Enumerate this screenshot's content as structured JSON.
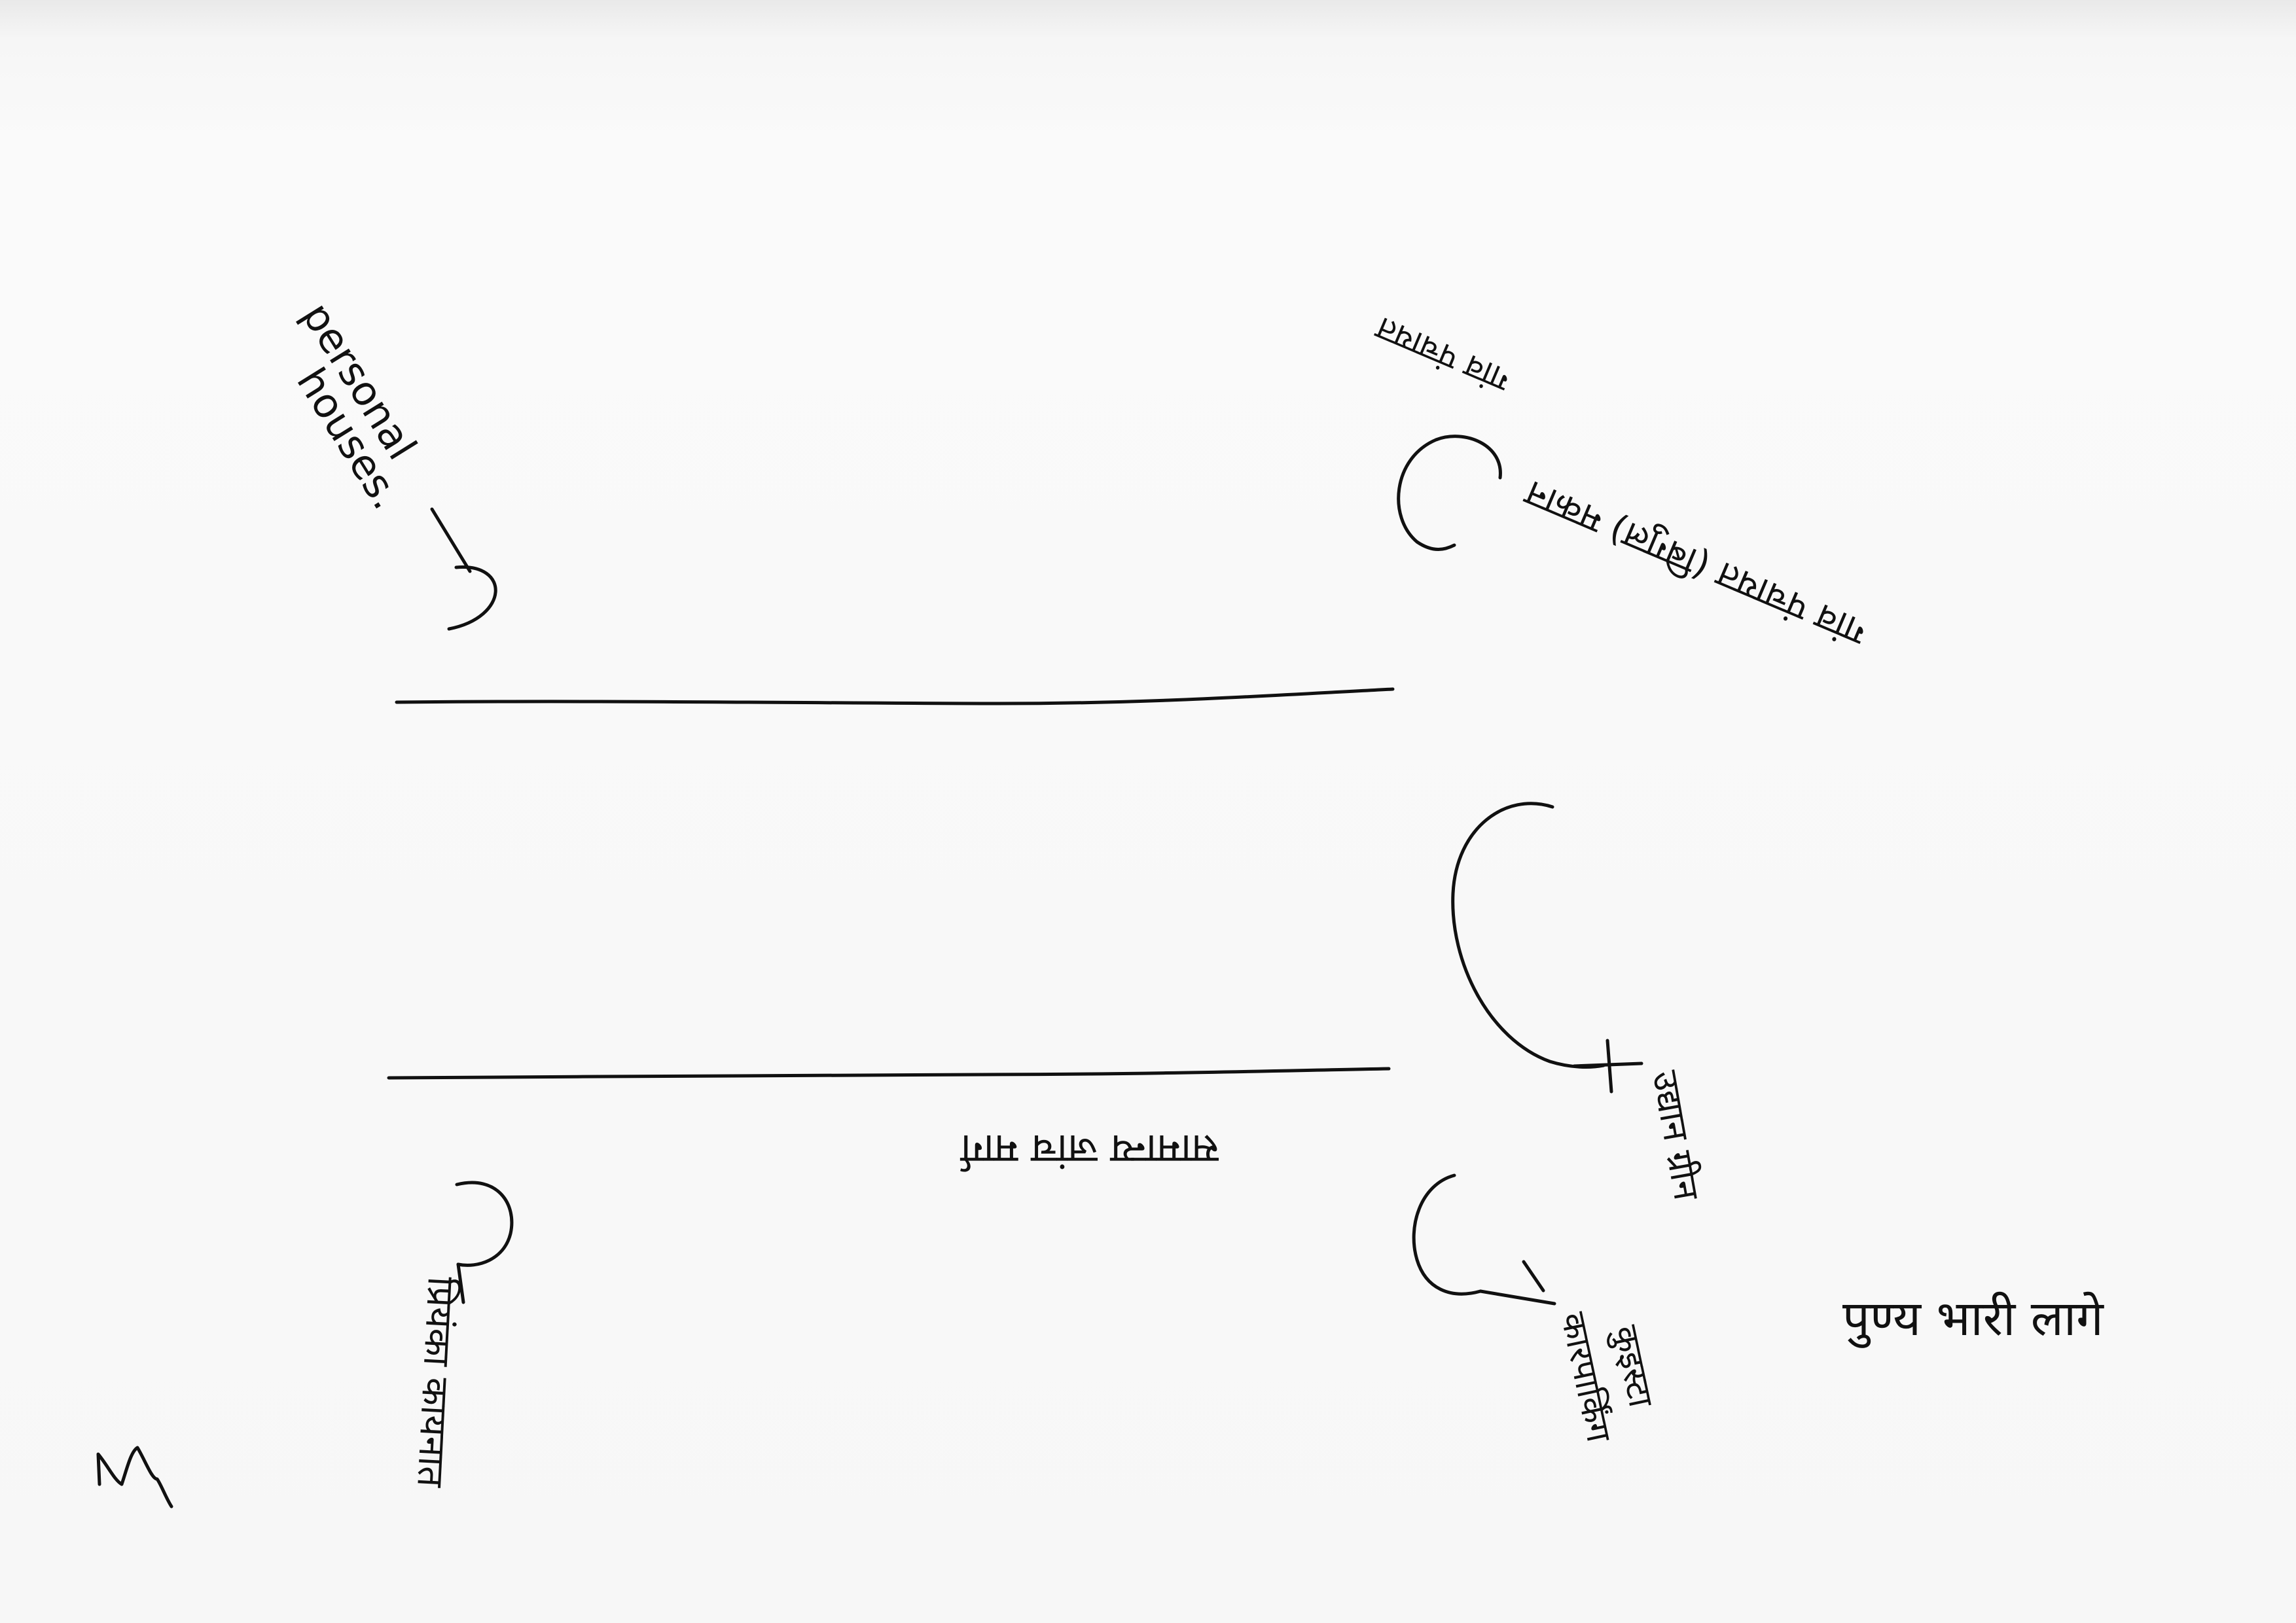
{
  "labels": {
    "top_left": [
      "personal",
      "houses."
    ],
    "top_right": [
      "गांव पंचायत (बिगुल) मकान",
      "गांव पंचायत"
    ],
    "road_label": "सामान्य जांच मार्ग",
    "bottom_left": "प्रियंका कायनात",
    "mid_right": "उद्यान ग्रीन",
    "bottom_right": [
      "कुइस्टा",
      "कारपार्किंग"
    ],
    "side_note": "पुण्य भारी लागे",
    "signature": "M"
  }
}
